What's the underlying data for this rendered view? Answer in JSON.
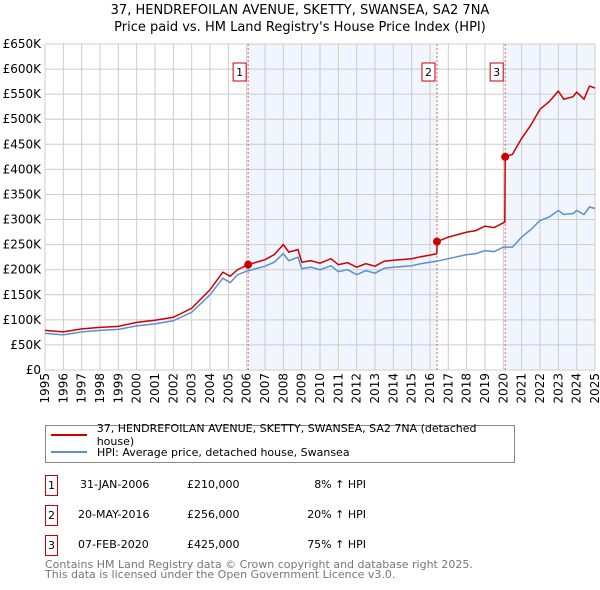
{
  "title": "37, HENDREFOILAN AVENUE, SKETTY, SWANSEA, SA2 7NA",
  "subtitle": "Price paid vs. HM Land Registry's House Price Index (HPI)",
  "chart_data": {
    "type": "line",
    "xlim": [
      1995,
      2025
    ],
    "ylim": [
      0,
      650000
    ],
    "yticks": [
      "£0",
      "£50K",
      "£100K",
      "£150K",
      "£200K",
      "£250K",
      "£300K",
      "£350K",
      "£400K",
      "£450K",
      "£500K",
      "£550K",
      "£600K",
      "£650K"
    ],
    "xticks": [
      "1995",
      "1996",
      "1997",
      "1998",
      "1999",
      "2000",
      "2001",
      "2002",
      "2003",
      "2004",
      "2005",
      "2006",
      "2007",
      "2008",
      "2009",
      "2010",
      "2011",
      "2012",
      "2013",
      "2014",
      "2015",
      "2016",
      "2017",
      "2018",
      "2019",
      "2020",
      "2021",
      "2022",
      "2023",
      "2024",
      "2025"
    ],
    "series": [
      {
        "name": "37, HENDREFOILAN AVENUE, SKETTY, SWANSEA, SA2 7NA (detached house)",
        "color": "#cc0000",
        "x": [
          1995,
          1996,
          1997,
          1998,
          1999,
          2000,
          2001,
          2002,
          2003,
          2004,
          2004.7,
          2005.1,
          2005.5,
          2006.08,
          2007,
          2007.5,
          2008,
          2008.3,
          2008.8,
          2009,
          2009.5,
          2010,
          2010.6,
          2011,
          2011.5,
          2012,
          2012.5,
          2013,
          2013.5,
          2014,
          2015,
          2015.5,
          2016,
          2016.37,
          2016.39,
          2017,
          2018,
          2018.5,
          2019,
          2019.5,
          2020.08,
          2020.1,
          2020.5,
          2021,
          2021.5,
          2022,
          2022.5,
          2023,
          2023.3,
          2023.8,
          2024,
          2024.4,
          2024.7,
          2025
        ],
        "y": [
          79,
          76,
          82,
          85,
          87,
          95,
          99,
          105,
          123,
          160,
          195,
          187,
          200,
          210,
          220,
          230,
          250,
          235,
          240,
          215,
          218,
          213,
          222,
          210,
          214,
          205,
          212,
          207,
          217,
          219,
          222,
          226,
          229,
          232,
          256,
          265,
          275,
          278,
          287,
          284,
          295,
          425,
          430,
          462,
          488,
          520,
          535,
          556,
          540,
          545,
          554,
          540,
          566,
          562
        ]
      },
      {
        "name": "HPI: Average price, detached house, Swansea",
        "color": "#5b8fd4",
        "x": [
          1995,
          1996,
          1997,
          1998,
          1999,
          2000,
          2001,
          2002,
          2003,
          2004,
          2004.7,
          2005.1,
          2005.5,
          2006,
          2007,
          2007.5,
          2008,
          2008.3,
          2008.8,
          2009,
          2009.5,
          2010,
          2010.6,
          2011,
          2011.5,
          2012,
          2012.5,
          2013,
          2013.5,
          2014,
          2015,
          2015.5,
          2016,
          2016.5,
          2017,
          2018,
          2018.5,
          2019,
          2019.5,
          2020,
          2020.5,
          2021,
          2021.5,
          2022,
          2022.5,
          2023,
          2023.3,
          2023.8,
          2024,
          2024.4,
          2024.7,
          2025
        ],
        "y": [
          73,
          70,
          76,
          79,
          81,
          88,
          92,
          98,
          115,
          150,
          183,
          174,
          190,
          197,
          207,
          215,
          232,
          218,
          225,
          202,
          205,
          200,
          208,
          196,
          200,
          190,
          198,
          193,
          203,
          205,
          208,
          212,
          215,
          218,
          222,
          230,
          232,
          238,
          236,
          245,
          245,
          265,
          280,
          298,
          305,
          318,
          310,
          312,
          318,
          310,
          325,
          322
        ]
      }
    ],
    "y_units": "thousands GBP",
    "sales": [
      {
        "label": "1",
        "x": 2006.08,
        "y": 210,
        "date": "31-JAN-2006",
        "price": "£210,000",
        "hpi": "8% ↑ HPI"
      },
      {
        "label": "2",
        "x": 2016.38,
        "y": 256,
        "date": "20-MAY-2016",
        "price": "£256,000",
        "hpi": "20% ↑ HPI"
      },
      {
        "label": "3",
        "x": 2020.1,
        "y": 425,
        "date": "07-FEB-2020",
        "price": "£425,000",
        "hpi": "75% ↑ HPI"
      }
    ]
  },
  "footer1": "Contains HM Land Registry data © Crown copyright and database right 2025.",
  "footer2": "This data is licensed under the Open Government Licence v3.0."
}
